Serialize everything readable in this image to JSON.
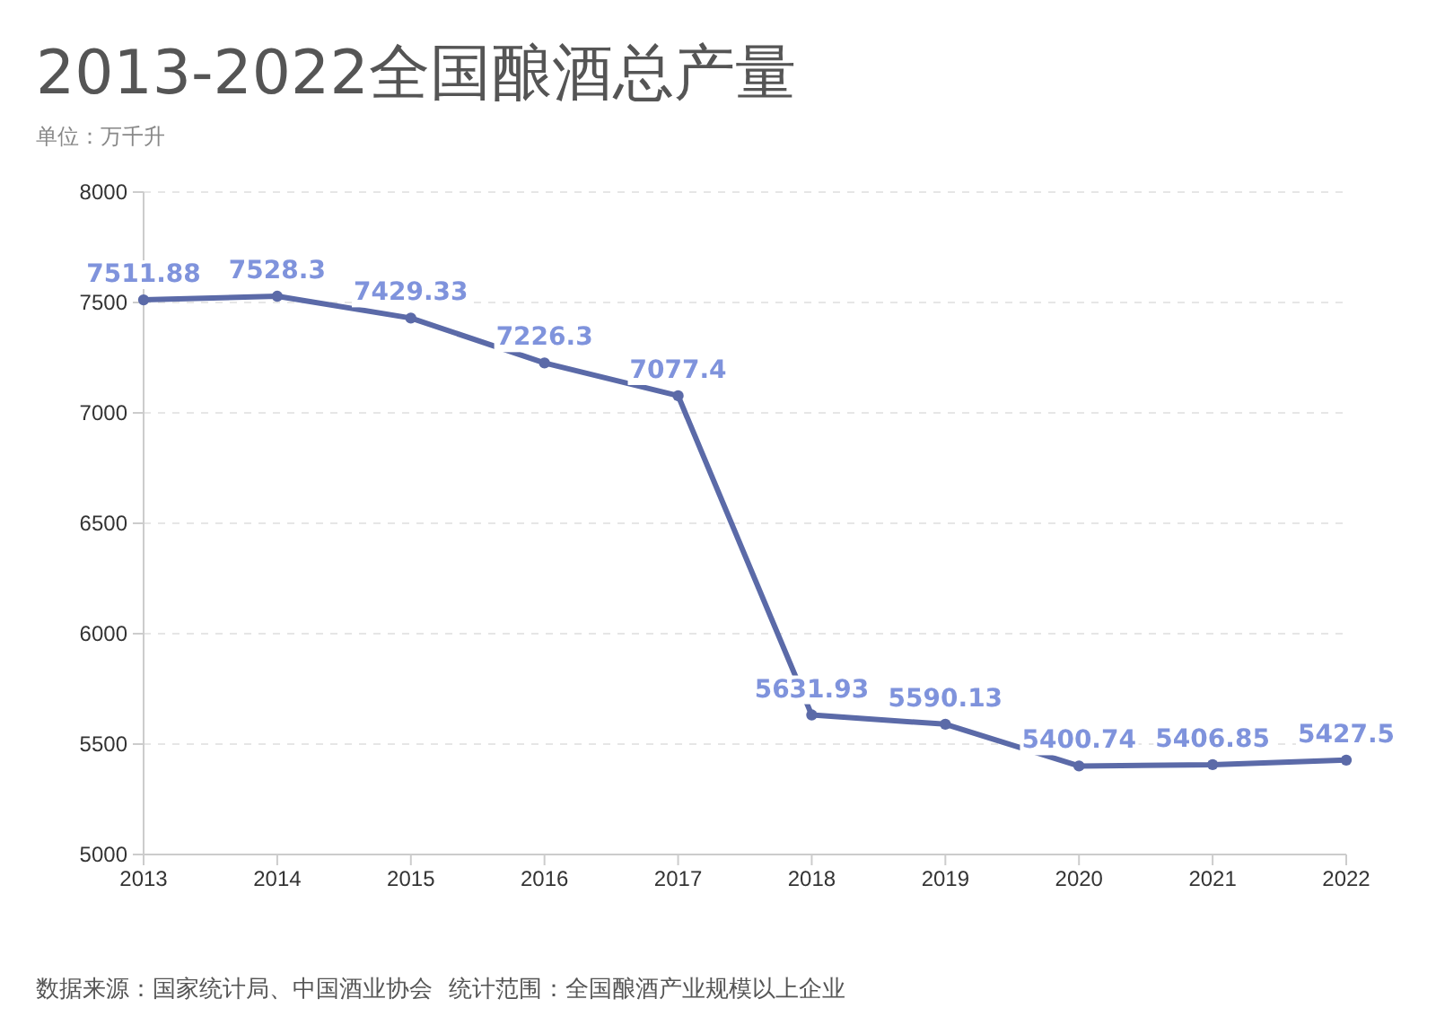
{
  "chart_data": {
    "type": "line",
    "title": "2013-2022全国酿酒总产量",
    "subtitle": "单位：万千升",
    "categories": [
      "2013",
      "2014",
      "2015",
      "2016",
      "2017",
      "2018",
      "2019",
      "2020",
      "2021",
      "2022"
    ],
    "series": [
      {
        "color": "#5b6aa8",
        "values": [
          7511.88,
          7528.3,
          7429.33,
          7226.3,
          7077.4,
          5631.93,
          5590.13,
          5400.74,
          5406.85,
          5427.5
        ]
      }
    ],
    "ylim": [
      5000,
      8000
    ],
    "yticks": [
      5000,
      5500,
      6000,
      6500,
      7000,
      7500,
      8000
    ],
    "grid": "y",
    "marker": "circle",
    "line_style": "solid",
    "data_labels": true,
    "annotations": [
      "数据来源：国家统计局、中国酒业协会",
      "统计范围：全国酿酒产业规模以上企业"
    ]
  }
}
